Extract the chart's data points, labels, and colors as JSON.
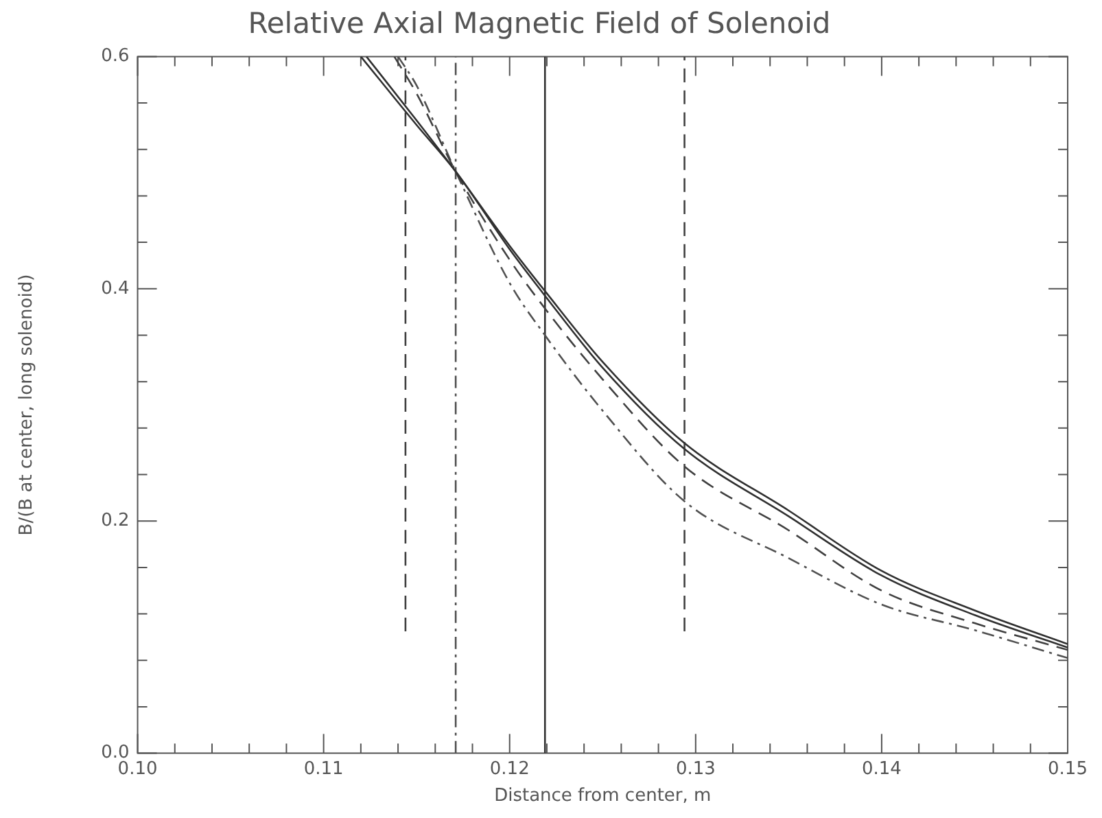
{
  "chart_data": {
    "type": "line",
    "title": "Relative Axial Magnetic Field of Solenoid",
    "xlabel": "Distance from center, m",
    "ylabel": "B/(B at center, long solenoid)",
    "xlim": [
      0.1,
      0.15
    ],
    "ylim": [
      0,
      0.6
    ],
    "xticks": [
      {
        "value": 0.1,
        "label": "0.10"
      },
      {
        "value": 0.102,
        "label": null
      },
      {
        "value": 0.104,
        "label": null
      },
      {
        "value": 0.106,
        "label": null
      },
      {
        "value": 0.108,
        "label": null
      },
      {
        "value": 0.11,
        "label": "0.11"
      },
      {
        "value": 0.112,
        "label": null
      },
      {
        "value": 0.114,
        "label": null
      },
      {
        "value": 0.116,
        "label": null
      },
      {
        "value": 0.118,
        "label": null
      },
      {
        "value": 0.12,
        "label": "0.12"
      },
      {
        "value": 0.122,
        "label": null
      },
      {
        "value": 0.124,
        "label": null
      },
      {
        "value": 0.126,
        "label": null
      },
      {
        "value": 0.128,
        "label": null
      },
      {
        "value": 0.13,
        "label": "0.13"
      },
      {
        "value": 0.132,
        "label": null
      },
      {
        "value": 0.134,
        "label": null
      },
      {
        "value": 0.136,
        "label": null
      },
      {
        "value": 0.138,
        "label": null
      },
      {
        "value": 0.14,
        "label": "0.14"
      },
      {
        "value": 0.142,
        "label": null
      },
      {
        "value": 0.144,
        "label": null
      },
      {
        "value": 0.146,
        "label": null
      },
      {
        "value": 0.148,
        "label": null
      },
      {
        "value": 0.15,
        "label": "0.15"
      }
    ],
    "yticks": [
      {
        "value": 0,
        "label": "0.0"
      },
      {
        "value": 0.04,
        "label": null
      },
      {
        "value": 0.08,
        "label": null
      },
      {
        "value": 0.12,
        "label": null
      },
      {
        "value": 0.16,
        "label": null
      },
      0.2,
      {
        "value": 0.24,
        "label": null
      },
      {
        "value": 0.28,
        "label": null
      },
      {
        "value": 0.32,
        "label": null
      },
      {
        "value": 0.36,
        "label": null
      },
      0.4,
      {
        "value": 0.44,
        "label": null
      },
      {
        "value": 0.48,
        "label": null
      },
      {
        "value": 0.52,
        "label": null
      },
      {
        "value": 0.56,
        "label": null
      },
      0.6
    ],
    "marker": "none",
    "series": [
      {
        "color": "#303030",
        "line_style": "solid",
        "x": [
          0.1123,
          0.115,
          0.1171,
          0.12,
          0.1219,
          0.125,
          0.1294,
          0.135,
          0.14,
          0.145,
          0.15
        ],
        "values": [
          0.6,
          0.545,
          0.501,
          0.437,
          0.398,
          0.337,
          0.267,
          0.209,
          0.157,
          0.123,
          0.094
        ]
      },
      {
        "color": "#303030",
        "line_style": "solid",
        "x": [
          0.112,
          0.115,
          0.1171,
          0.12,
          0.1219,
          0.125,
          0.1294,
          0.135,
          0.14,
          0.145,
          0.15
        ],
        "values": [
          0.6,
          0.541,
          0.501,
          0.434,
          0.394,
          0.332,
          0.262,
          0.204,
          0.153,
          0.119,
          0.091
        ]
      },
      {
        "color": "#404040",
        "line_style": "dashed",
        "x": [
          0.1138,
          0.115,
          0.1171,
          0.12,
          0.1219,
          0.125,
          0.1294,
          0.135,
          0.14,
          0.145,
          0.15
        ],
        "values": [
          0.6,
          0.568,
          0.501,
          0.425,
          0.383,
          0.322,
          0.247,
          0.192,
          0.14,
          0.112,
          0.089
        ]
      },
      {
        "color": "#505050",
        "line_style": "dashdot",
        "x": [
          0.114,
          0.115,
          0.1171,
          0.12,
          0.1219,
          0.125,
          0.1294,
          0.135,
          0.14,
          0.145,
          0.15
        ],
        "values": [
          0.6,
          0.575,
          0.501,
          0.405,
          0.36,
          0.295,
          0.217,
          0.168,
          0.128,
          0.106,
          0.082
        ]
      },
      {
        "color": "#404040",
        "line_style": "dashed",
        "x": [
          0.1144,
          0.1144
        ],
        "values": [
          0.105,
          0.6
        ]
      },
      {
        "color": "#505050",
        "line_style": "dashdot",
        "x": [
          0.1171,
          0.1171
        ],
        "values": [
          0,
          0.6
        ]
      },
      {
        "color": "#303030",
        "line_style": "solid",
        "x": [
          0.1219,
          0.1219
        ],
        "values": [
          0,
          0.6
        ]
      },
      {
        "color": "#404040",
        "line_style": "dashed",
        "x": [
          0.1294,
          0.1294
        ],
        "values": [
          0.105,
          0.6
        ]
      }
    ]
  }
}
